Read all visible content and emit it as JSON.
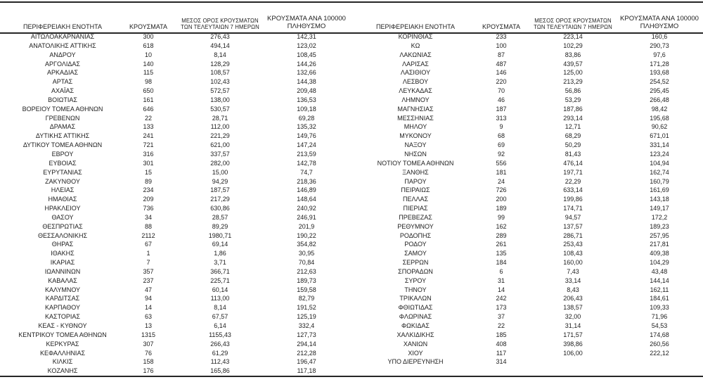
{
  "page": {
    "background": "#ffffff",
    "text_color": "#212121",
    "rule_color": "#262626"
  },
  "tables": [
    {
      "headers": {
        "region": "ΠΕΡΙΦΕΡΕΙΑΚΗ ΕΝΟΤΗΤΑ",
        "cases": "ΚΡΟΥΣΜΑΤΑ",
        "avg7_line1": "ΜΕΣΟΣ ΟΡΟΣ ΚΡΟΥΣΜΑΤΩΝ",
        "avg7_line2": "ΤΩΝ ΤΕΛΕΥΤΑΙΩΝ 7 ΗΜΕΡΩΝ",
        "per100k_line1": "ΚΡΟΥΣΜΑΤΑ ΑΝΑ 100000",
        "per100k_line2": "ΠΛΗΘΥΣΜΟ"
      },
      "rows": [
        [
          "ΑΙΤΩΛΟΑΚΑΡΝΑΝΙΑΣ",
          "300",
          "276,43",
          "142,31"
        ],
        [
          "ΑΝΑΤΟΛΙΚΗΣ ΑΤΤΙΚΗΣ",
          "618",
          "494,14",
          "123,02"
        ],
        [
          "ΑΝΔΡΟΥ",
          "10",
          "8,14",
          "108,45"
        ],
        [
          "ΑΡΓΟΛΙΔΑΣ",
          "140",
          "128,29",
          "144,26"
        ],
        [
          "ΑΡΚΑΔΙΑΣ",
          "115",
          "108,57",
          "132,66"
        ],
        [
          "ΑΡΤΑΣ",
          "98",
          "102,43",
          "144,38"
        ],
        [
          "ΑΧΑΪΑΣ",
          "650",
          "572,57",
          "209,48"
        ],
        [
          "ΒΟΙΩΤΙΑΣ",
          "161",
          "138,00",
          "136,53"
        ],
        [
          "ΒΟΡΕΙΟΥ ΤΟΜΕΑ ΑΘΗΝΩΝ",
          "646",
          "530,57",
          "109,18"
        ],
        [
          "ΓΡΕΒΕΝΩΝ",
          "22",
          "28,71",
          "69,28"
        ],
        [
          "ΔΡΑΜΑΣ",
          "133",
          "112,00",
          "135,32"
        ],
        [
          "ΔΥΤΙΚΗΣ ΑΤΤΙΚΗΣ",
          "241",
          "221,29",
          "149,76"
        ],
        [
          "ΔΥΤΙΚΟΥ ΤΟΜΕΑ ΑΘΗΝΩΝ",
          "721",
          "621,00",
          "147,24"
        ],
        [
          "ΕΒΡΟΥ",
          "316",
          "337,57",
          "213,59"
        ],
        [
          "ΕΥΒΟΙΑΣ",
          "301",
          "282,00",
          "142,78"
        ],
        [
          "ΕΥΡΥΤΑΝΙΑΣ",
          "15",
          "15,00",
          "74,7"
        ],
        [
          "ΖΑΚΥΝΘΟΥ",
          "89",
          "94,29",
          "218,36"
        ],
        [
          "ΗΛΕΙΑΣ",
          "234",
          "187,57",
          "146,89"
        ],
        [
          "ΗΜΑΘΙΑΣ",
          "209",
          "217,29",
          "148,64"
        ],
        [
          "ΗΡΑΚΛΕΙΟΥ",
          "736",
          "630,86",
          "240,92"
        ],
        [
          "ΘΑΣΟΥ",
          "34",
          "28,57",
          "246,91"
        ],
        [
          "ΘΕΣΠΡΩΤΙΑΣ",
          "88",
          "89,29",
          "201,9"
        ],
        [
          "ΘΕΣΣΑΛΟΝΙΚΗΣ",
          "2112",
          "1980,71",
          "190,22"
        ],
        [
          "ΘΗΡΑΣ",
          "67",
          "69,14",
          "354,82"
        ],
        [
          "ΙΘΑΚΗΣ",
          "1",
          "1,86",
          "30,95"
        ],
        [
          "ΙΚΑΡΙΑΣ",
          "7",
          "3,71",
          "70,84"
        ],
        [
          "ΙΩΑΝΝΙΝΩΝ",
          "357",
          "366,71",
          "212,63"
        ],
        [
          "ΚΑΒΑΛΑΣ",
          "237",
          "225,71",
          "189,73"
        ],
        [
          "ΚΑΛΥΜΝΟΥ",
          "47",
          "60,14",
          "159,58"
        ],
        [
          "ΚΑΡΔΙΤΣΑΣ",
          "94",
          "113,00",
          "82,79"
        ],
        [
          "ΚΑΡΠΑΘΟΥ",
          "14",
          "8,14",
          "191,52"
        ],
        [
          "ΚΑΣΤΟΡΙΑΣ",
          "63",
          "67,57",
          "125,19"
        ],
        [
          "ΚΕΑΣ - ΚΥΘΝΟΥ",
          "13",
          "6,14",
          "332,4"
        ],
        [
          "ΚΕΝΤΡΙΚΟΥ ΤΟΜΕΑ ΑΘΗΝΩΝ",
          "1315",
          "1155,43",
          "127,73"
        ],
        [
          "ΚΕΡΚΥΡΑΣ",
          "307",
          "266,43",
          "294,14"
        ],
        [
          "ΚΕΦΑΛΛΗΝΙΑΣ",
          "76",
          "61,29",
          "212,28"
        ],
        [
          "ΚΙΛΚΙΣ",
          "158",
          "112,43",
          "196,47"
        ],
        [
          "ΚΟΖΑΝΗΣ",
          "176",
          "165,86",
          "117,18"
        ]
      ]
    },
    {
      "headers": {
        "region": "ΠΕΡΙΦΕΡΕΙΑΚΗ ΕΝΟΤΗΤΑ",
        "cases": "ΚΡΟΥΣΜΑΤΑ",
        "avg7_line1": "ΜΕΣΟΣ ΟΡΟΣ ΚΡΟΥΣΜΑΤΩΝ",
        "avg7_line2": "ΤΩΝ ΤΕΛΕΥΤΑΙΩΝ 7 ΗΜΕΡΩΝ",
        "per100k_line1": "ΚΡΟΥΣΜΑΤΑ ΑΝΑ 100000",
        "per100k_line2": "ΠΛΗΘΥΣΜΟ"
      },
      "rows": [
        [
          "ΚΟΡΙΝΘΙΑΣ",
          "233",
          "223,14",
          "160,6"
        ],
        [
          "ΚΩ",
          "100",
          "102,29",
          "290,73"
        ],
        [
          "ΛΑΚΩΝΙΑΣ",
          "87",
          "83,86",
          "97,6"
        ],
        [
          "ΛΑΡΙΣΑΣ",
          "487",
          "439,57",
          "171,28"
        ],
        [
          "ΛΑΣΙΘΙΟΥ",
          "146",
          "125,00",
          "193,68"
        ],
        [
          "ΛΕΣΒΟΥ",
          "220",
          "213,29",
          "254,52"
        ],
        [
          "ΛΕΥΚΑΔΑΣ",
          "70",
          "56,86",
          "295,45"
        ],
        [
          "ΛΗΜΝΟΥ",
          "46",
          "53,29",
          "266,48"
        ],
        [
          "ΜΑΓΝΗΣΙΑΣ",
          "187",
          "187,86",
          "98,42"
        ],
        [
          "ΜΕΣΣΗΝΙΑΣ",
          "313",
          "293,14",
          "195,68"
        ],
        [
          "ΜΗΛΟΥ",
          "9",
          "12,71",
          "90,62"
        ],
        [
          "ΜΥΚΟΝΟΥ",
          "68",
          "68,29",
          "671,01"
        ],
        [
          "ΝΑΞΟΥ",
          "69",
          "50,29",
          "331,14"
        ],
        [
          "ΝΗΣΩΝ",
          "92",
          "81,43",
          "123,24"
        ],
        [
          "ΝΟΤΙΟΥ ΤΟΜΕΑ ΑΘΗΝΩΝ",
          "556",
          "476,14",
          "104,94"
        ],
        [
          "ΞΑΝΘΗΣ",
          "181",
          "197,71",
          "162,74"
        ],
        [
          "ΠΑΡΟΥ",
          "24",
          "22,29",
          "160,79"
        ],
        [
          "ΠΕΙΡΑΙΩΣ",
          "726",
          "633,14",
          "161,69"
        ],
        [
          "ΠΕΛΛΑΣ",
          "200",
          "199,86",
          "143,18"
        ],
        [
          "ΠΙΕΡΙΑΣ",
          "189",
          "174,71",
          "149,17"
        ],
        [
          "ΠΡΕΒΕΖΑΣ",
          "99",
          "94,57",
          "172,2"
        ],
        [
          "ΡΕΘΥΜΝΟΥ",
          "162",
          "137,57",
          "189,23"
        ],
        [
          "ΡΟΔΟΠΗΣ",
          "289",
          "286,71",
          "257,95"
        ],
        [
          "ΡΟΔΟΥ",
          "261",
          "253,43",
          "217,81"
        ],
        [
          "ΣΑΜΟΥ",
          "135",
          "108,43",
          "409,38"
        ],
        [
          "ΣΕΡΡΩΝ",
          "184",
          "160,00",
          "104,29"
        ],
        [
          "ΣΠΟΡΑΔΩΝ",
          "6",
          "7,43",
          "43,48"
        ],
        [
          "ΣΥΡΟΥ",
          "31",
          "33,14",
          "144,14"
        ],
        [
          "ΤΗΝΟΥ",
          "14",
          "8,43",
          "162,11"
        ],
        [
          "ΤΡΙΚΑΛΩΝ",
          "242",
          "206,43",
          "184,61"
        ],
        [
          "ΦΘΙΩΤΙΔΑΣ",
          "173",
          "138,57",
          "109,33"
        ],
        [
          "ΦΛΩΡΙΝΑΣ",
          "37",
          "32,00",
          "71,96"
        ],
        [
          "ΦΩΚΙΔΑΣ",
          "22",
          "31,14",
          "54,53"
        ],
        [
          "ΧΑΛΚΙΔΙΚΗΣ",
          "185",
          "171,57",
          "174,68"
        ],
        [
          "ΧΑΝΙΩΝ",
          "408",
          "398,86",
          "260,56"
        ],
        [
          "ΧΙΟΥ",
          "117",
          "106,00",
          "222,12"
        ],
        [
          "ΥΠΟ ΔΙΕΡΕΥΝΗΣΗ",
          "314",
          "",
          ""
        ]
      ]
    }
  ]
}
